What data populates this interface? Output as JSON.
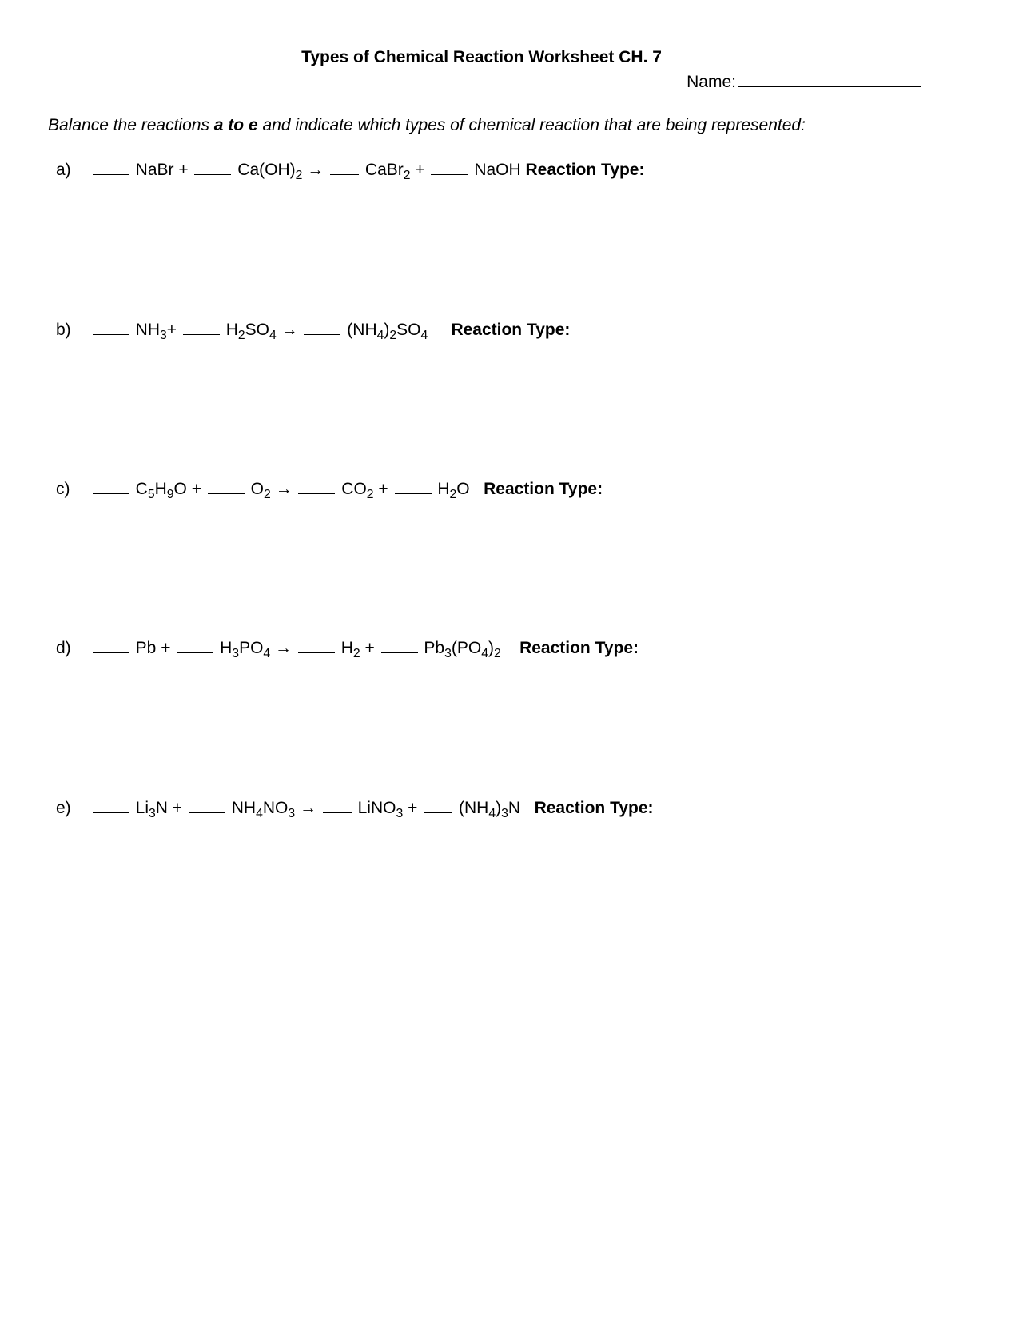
{
  "title": "Types of Chemical Reaction Worksheet CH. 7",
  "name_label": "Name:",
  "instructions_pre": "Balance the reactions ",
  "instructions_bold": "a to e",
  "instructions_post": "  and indicate which types of chemical reaction that are being represented:",
  "arrow": "→",
  "reaction_type_label": "Reaction Type:",
  "problems": {
    "a": {
      "label": "a)",
      "r1_pre": " NaBr + ",
      "r2_html": " Ca(OH)",
      "r2_sub": "2",
      "p1_pre": " CaBr",
      "p1_sub": "2",
      "p2_pre": " + ",
      "p2_html": " NaOH  "
    },
    "b": {
      "label": "b)",
      "r1_pre": " NH",
      "r1_sub": "3",
      "r1_post": "+ ",
      "r2_pre": " H",
      "r2_sub1": "2",
      "r2_mid": "SO",
      "r2_sub2": "4",
      "p1_pre": " (NH",
      "p1_sub1": "4",
      "p1_mid": ")",
      "p1_sub2": "2",
      "p1_mid2": "SO",
      "p1_sub3": "4",
      "spacer": "     "
    },
    "c": {
      "label": "c)",
      "r1_pre": " C",
      "r1_sub1": "5",
      "r1_mid": "H",
      "r1_sub2": "9",
      "r1_post": "O + ",
      "r2_pre": " O",
      "r2_sub": "2",
      "p1_pre": " CO",
      "p1_sub": "2",
      "p1_post": " + ",
      "p2_pre": " H",
      "p2_sub": "2",
      "p2_post": "O   "
    },
    "d": {
      "label": "d)",
      "r1_pre": " Pb + ",
      "r2_pre": " H",
      "r2_sub1": "3",
      "r2_mid": "PO",
      "r2_sub2": "4",
      "p1_pre": " H",
      "p1_sub": "2",
      "p1_post": " + ",
      "p2_pre": " Pb",
      "p2_sub1": "3",
      "p2_mid": "(PO",
      "p2_sub2": "4",
      "p2_mid2": ")",
      "p2_sub3": "2",
      "spacer": "    "
    },
    "e": {
      "label": "e)",
      "r1_pre": " Li",
      "r1_sub": "3",
      "r1_post": "N + ",
      "r2_pre": " NH",
      "r2_sub1": "4",
      "r2_mid": "NO",
      "r2_sub2": "3",
      "p1_pre": " LiNO",
      "p1_sub": "3",
      "p1_post": " + ",
      "p2_pre": " (NH",
      "p2_sub1": "4",
      "p2_mid": ")",
      "p2_sub2": "3",
      "p2_post": "N   "
    }
  }
}
